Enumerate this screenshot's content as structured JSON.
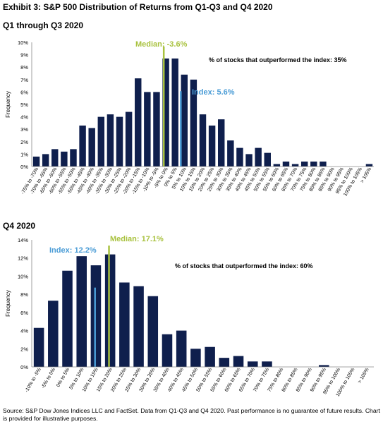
{
  "header": {
    "title": "Exhibit 3: S&P 500 Distribution of Returns from Q1-Q3 and Q4 2020"
  },
  "chart_data": [
    {
      "type": "bar",
      "title": "Q1 through Q3 2020",
      "ylabel": "Frequency",
      "ylim": [
        0,
        10
      ],
      "y_ticks": [
        "0%",
        "1%",
        "2%",
        "3%",
        "4%",
        "5%",
        "6%",
        "7%",
        "8%",
        "9%",
        "10%"
      ],
      "grid": false,
      "categories": [
        "-75% to -70%",
        "-70% to -65%",
        "-65% to -60%",
        "-60% to -55%",
        "-55% to -50%",
        "-50% to -45%",
        "-45% to -40%",
        "-40% to -35%",
        "-35% to -30%",
        "-30% to -25%",
        "-25% to -20%",
        "-20% to -15%",
        "-15% to -10%",
        "-10% to -5%",
        "-5% to 0%",
        "0% to 5%",
        "5% to 10%",
        "10% to 15%",
        "15% to 20%",
        "20% to 25%",
        "25% to 30%",
        "30% to 35%",
        "35% to 40%",
        "40% to 45%",
        "45% to 50%",
        "50% to 55%",
        "55% to 60%",
        "60% to 65%",
        "65% to 70%",
        "70% to 75%",
        "75% to 80%",
        "80% to 85%",
        "85% to 90%",
        "90% to 95%",
        "95% to 100%",
        "100% to 105%",
        "> 105%"
      ],
      "values": [
        0.8,
        1.0,
        1.4,
        1.2,
        1.4,
        3.3,
        3.1,
        4.0,
        4.2,
        4.0,
        4.4,
        7.1,
        6.0,
        6.0,
        8.7,
        8.7,
        7.4,
        7.0,
        4.2,
        3.3,
        3.8,
        2.1,
        1.5,
        1.0,
        1.5,
        1.1,
        0.2,
        0.4,
        0.2,
        0.4,
        0.4,
        0.4,
        0,
        0,
        0,
        0,
        0.2
      ],
      "median": {
        "label": "Median: -3.6%",
        "value": -3.6
      },
      "index": {
        "label": "Index: 5.6%",
        "value": 5.6
      },
      "annotation": "% of stocks that outperformed the index: 35%",
      "colors": {
        "bar": "#0f1f4d",
        "median": "#a9c23f",
        "index": "#4a9cd6"
      }
    },
    {
      "type": "bar",
      "title": "Q4 2020",
      "ylabel": "Frequency",
      "ylim": [
        0,
        14
      ],
      "y_ticks": [
        "0%",
        "2%",
        "4%",
        "6%",
        "8%",
        "10%",
        "12%",
        "14%"
      ],
      "grid": false,
      "categories": [
        "-10% to -5%",
        "-5% to 0%",
        "0% to 5%",
        "5% to 10%",
        "10% to 15%",
        "15% to 20%",
        "20% to 25%",
        "25% to 30%",
        "30% to 35%",
        "35% to 40%",
        "40% to 45%",
        "45% to 50%",
        "50% to 55%",
        "55% to 60%",
        "60% to 65%",
        "65% to 70%",
        "70% to 75%",
        "75% to 80%",
        "80% to 85%",
        "85% to 90%",
        "90% to 95%",
        "95% to 100%",
        "100% to 105%",
        "> 105%"
      ],
      "values": [
        4.3,
        7.3,
        10.6,
        12.2,
        11.2,
        12.4,
        9.3,
        8.9,
        7.8,
        3.6,
        4.0,
        2.0,
        2.2,
        1.0,
        1.2,
        0.6,
        0.6,
        0,
        0,
        0,
        0.2,
        0,
        0,
        0
      ],
      "median": {
        "label": "Median: 17.1%",
        "value": 17.1
      },
      "index": {
        "label": "Index: 12.2%",
        "value": 12.2
      },
      "annotation": "% of stocks that outperformed the index: 60%",
      "colors": {
        "bar": "#0f1f4d",
        "median": "#a9c23f",
        "index": "#4a9cd6"
      }
    }
  ],
  "footer": {
    "source": "Source: S&P Dow Jones Indices LLC and FactSet. Data from Q1-Q3 and Q4 2020. Past performance is no guarantee of future results. Chart is provided for illustrative purposes."
  }
}
